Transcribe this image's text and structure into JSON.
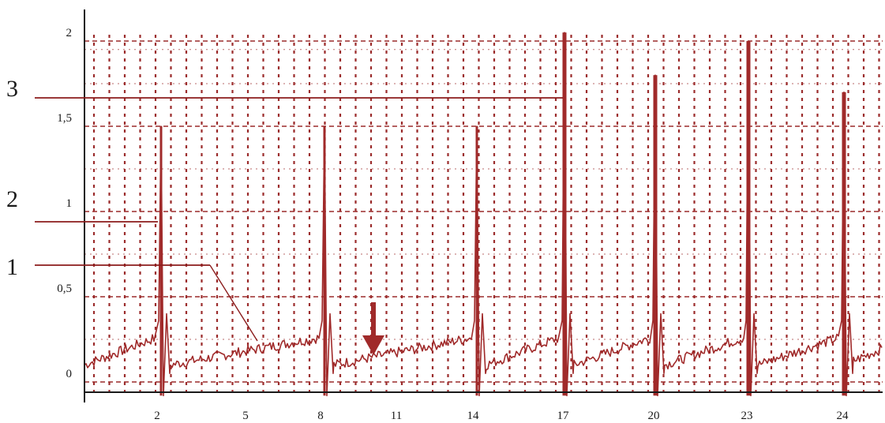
{
  "chart_data": {
    "type": "line",
    "colors": {
      "trace": "#a02a2a",
      "grid": "#9b2c2c",
      "axis": "#1a1a1a",
      "text": "#1a1a1a",
      "callout": "#8b1c1c"
    },
    "grid": true,
    "x_ticks": [
      "2",
      "5",
      "8",
      "11",
      "14",
      "17",
      "20",
      "23",
      "24"
    ],
    "y_ticks": [
      {
        "value": 0,
        "label": "0"
      },
      {
        "value": 0.5,
        "label": "0,5"
      },
      {
        "value": 1,
        "label": "1"
      },
      {
        "value": 1.5,
        "label": "1,5"
      },
      {
        "value": 2,
        "label": "2"
      }
    ],
    "ylim": [
      -0.12,
      2.1
    ],
    "baseline": {
      "slope_start": 0.1,
      "slope_end": 0.26
    },
    "spikes": [
      {
        "near_tick_index": 0,
        "peak": 1.5,
        "type": "thin"
      },
      {
        "near_tick_index": 2,
        "peak": 1.5,
        "type": "thin"
      },
      {
        "near_tick_index": 4,
        "peak": 1.5,
        "type": "thin"
      },
      {
        "near_tick_index": 5,
        "peak": 2.05,
        "type": "thick"
      },
      {
        "near_tick_index": 6,
        "peak": 1.8,
        "type": "thick"
      },
      {
        "near_tick_index": 7,
        "peak": 2.0,
        "type": "thick"
      },
      {
        "near_tick_index": 8,
        "peak": 1.7,
        "type": "thick"
      }
    ],
    "marker": {
      "type": "arrow-down",
      "near_tick_index": 3
    },
    "callouts": [
      {
        "label": "3",
        "level": 1.6
      },
      {
        "label": "2",
        "level": 0.88
      },
      {
        "label": "1",
        "level": 0.63
      }
    ]
  }
}
